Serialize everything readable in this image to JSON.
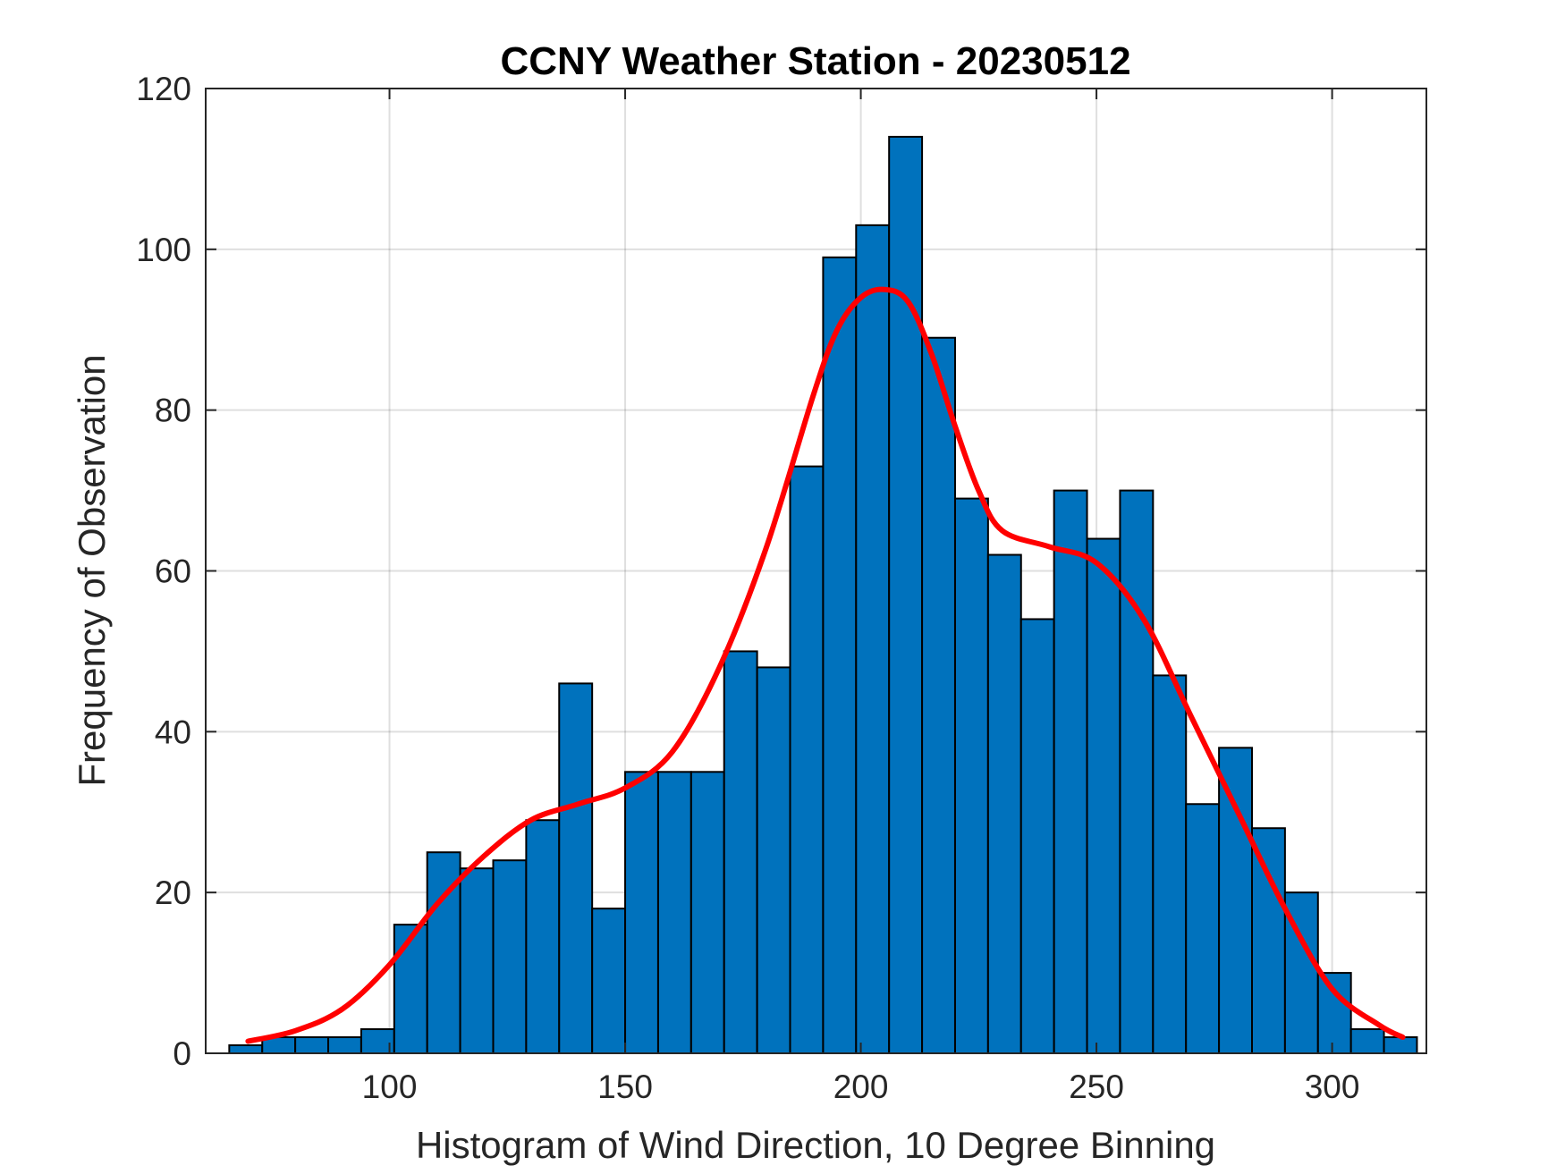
{
  "chart_data": {
    "type": "bar",
    "title": "CCNY Weather Station - 20230512",
    "xlabel": "Histogram of Wind Direction, 10 Degree Binning",
    "ylabel": "Frequency of Observation",
    "xlim": [
      61,
      320
    ],
    "ylim": [
      0,
      120
    ],
    "grid": true,
    "xticks": [
      100,
      150,
      200,
      250,
      300
    ],
    "yticks": [
      0,
      20,
      40,
      60,
      80,
      100,
      120
    ],
    "bin_width": 7,
    "bin_start": 66,
    "values": [
      1,
      2,
      2,
      2,
      3,
      16,
      25,
      23,
      24,
      29,
      46,
      18,
      35,
      35,
      35,
      50,
      48,
      73,
      99,
      103,
      114,
      89,
      69,
      62,
      54,
      70,
      64,
      70,
      47,
      31,
      38,
      28,
      20,
      10,
      3,
      2
    ],
    "bar_color": "#0072BD",
    "fit_curve": {
      "color": "#FF0000",
      "x": [
        70,
        80,
        90,
        100,
        110,
        120,
        130,
        140,
        150,
        160,
        170,
        180,
        190,
        195,
        200,
        205,
        210,
        215,
        220,
        225,
        230,
        240,
        250,
        260,
        270,
        280,
        290,
        300,
        310,
        315
      ],
      "y": [
        1.5,
        2.8,
        5.5,
        11,
        18.5,
        24.5,
        29,
        31,
        33,
        37.5,
        48,
        63,
        82,
        90,
        94,
        95,
        93.5,
        87,
        78,
        70,
        65,
        63,
        61,
        54,
        42,
        30,
        18,
        8,
        3.5,
        2
      ]
    }
  }
}
